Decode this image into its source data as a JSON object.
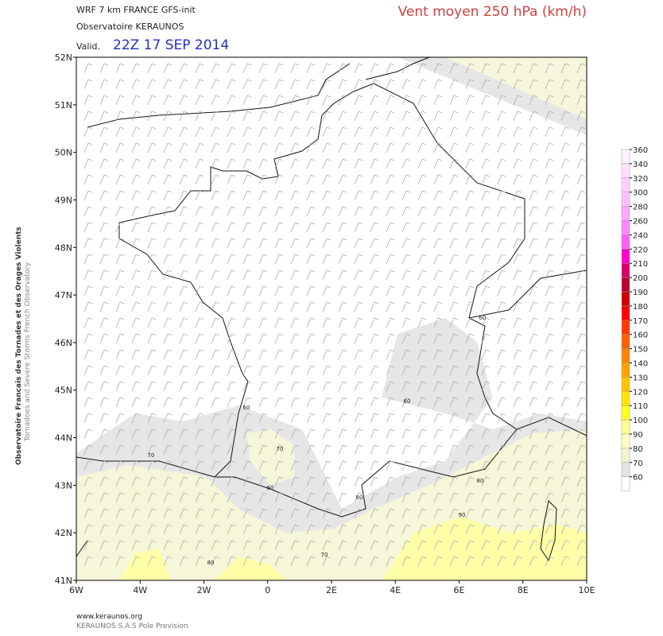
{
  "header": {
    "model": "WRF 7 km FRANCE  GFS-init",
    "source": "Observatoire KERAUNOS",
    "valid_label": "Valid.",
    "valid_time": "22Z 17 SEP 2014",
    "title": "Vent moyen 250 hPa (km/h)"
  },
  "side": {
    "line1": "Observatoire Francais des Tornades et des Orages Violents",
    "line2": "Tornadoes and Severe Storms French Observatory"
  },
  "map": {
    "lat_ticks": [
      {
        "value": 52,
        "label": "52N"
      },
      {
        "value": 51,
        "label": "51N"
      },
      {
        "value": 50,
        "label": "50N"
      },
      {
        "value": 49,
        "label": "49N"
      },
      {
        "value": 48,
        "label": "48N"
      },
      {
        "value": 47,
        "label": "47N"
      },
      {
        "value": 46,
        "label": "46N"
      },
      {
        "value": 45,
        "label": "45N"
      },
      {
        "value": 44,
        "label": "44N"
      },
      {
        "value": 43,
        "label": "43N"
      },
      {
        "value": 42,
        "label": "42N"
      },
      {
        "value": 41,
        "label": "41N"
      }
    ],
    "lon_ticks": [
      {
        "value": -6,
        "label": "6W"
      },
      {
        "value": -4,
        "label": "4W"
      },
      {
        "value": -2,
        "label": "2W"
      },
      {
        "value": 0,
        "label": "0"
      },
      {
        "value": 2,
        "label": "2E"
      },
      {
        "value": 4,
        "label": "4E"
      },
      {
        "value": 6,
        "label": "6E"
      },
      {
        "value": 8,
        "label": "8E"
      },
      {
        "value": 10,
        "label": "10E"
      }
    ],
    "contour_labels": [
      "60",
      "60",
      "60",
      "60",
      "70",
      "70",
      "70",
      "80",
      "80",
      "80",
      "90"
    ]
  },
  "colorbar": {
    "levels": [
      360,
      340,
      320,
      300,
      280,
      260,
      240,
      220,
      210,
      200,
      190,
      180,
      170,
      160,
      150,
      140,
      130,
      120,
      110,
      100,
      90,
      80,
      70,
      60
    ],
    "colors": [
      "#fff0ff",
      "#ffe0ff",
      "#ffd0ff",
      "#ffc0ff",
      "#ffa8ff",
      "#ff88ff",
      "#ff60f0",
      "#ff00d0",
      "#d8006c",
      "#b80030",
      "#cc0000",
      "#ff0000",
      "#ff3800",
      "#ff6000",
      "#ff8400",
      "#ffa400",
      "#ffc400",
      "#ffe400",
      "#ffff20",
      "#ffff90",
      "#ffffc0",
      "#f4f4d0",
      "#e4e4e4",
      "#ffffff"
    ]
  },
  "footer": {
    "site": "www.keraunos.org",
    "company": "KERAUNOS S.A.S Pole Prevision"
  }
}
